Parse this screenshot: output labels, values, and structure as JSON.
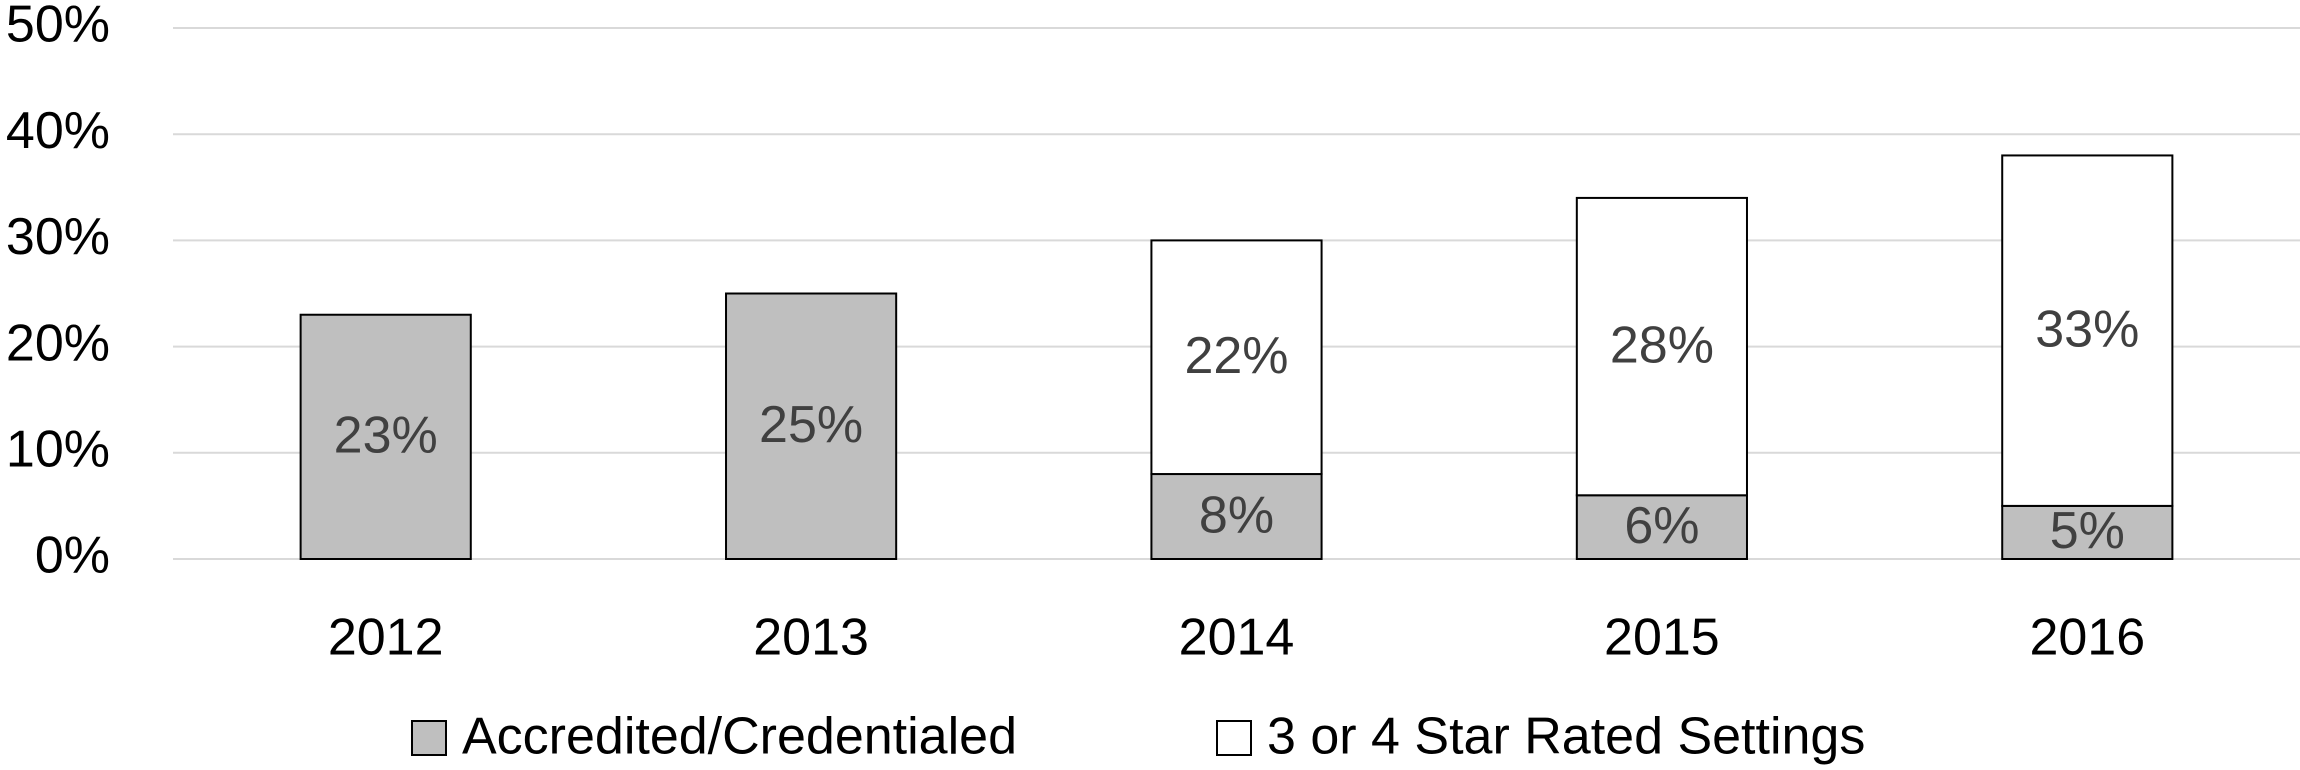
{
  "chart_data": {
    "type": "stacked_bar",
    "categories": [
      "2012",
      "2013",
      "2014",
      "2015",
      "2016"
    ],
    "series": [
      {
        "name": "Accredited/Credentialed",
        "color": "#bfbfbf",
        "values": [
          23,
          25,
          8,
          6,
          5
        ],
        "value_labels": [
          "23%",
          "25%",
          "8%",
          "6%",
          "5%"
        ]
      },
      {
        "name": "3 or 4 Star Rated Settings",
        "color": "#ffffff",
        "values": [
          null,
          null,
          22,
          28,
          33
        ],
        "value_labels": [
          null,
          null,
          "22%",
          "28%",
          "33%"
        ]
      }
    ],
    "ylim": [
      0,
      50
    ],
    "yticks": [
      {
        "value": 0,
        "label": "0%"
      },
      {
        "value": 10,
        "label": "10%"
      },
      {
        "value": 20,
        "label": "20%"
      },
      {
        "value": 30,
        "label": "30%"
      },
      {
        "value": 40,
        "label": "40%"
      },
      {
        "value": 50,
        "label": "50%"
      }
    ],
    "grid": true,
    "legend": "bottom"
  }
}
